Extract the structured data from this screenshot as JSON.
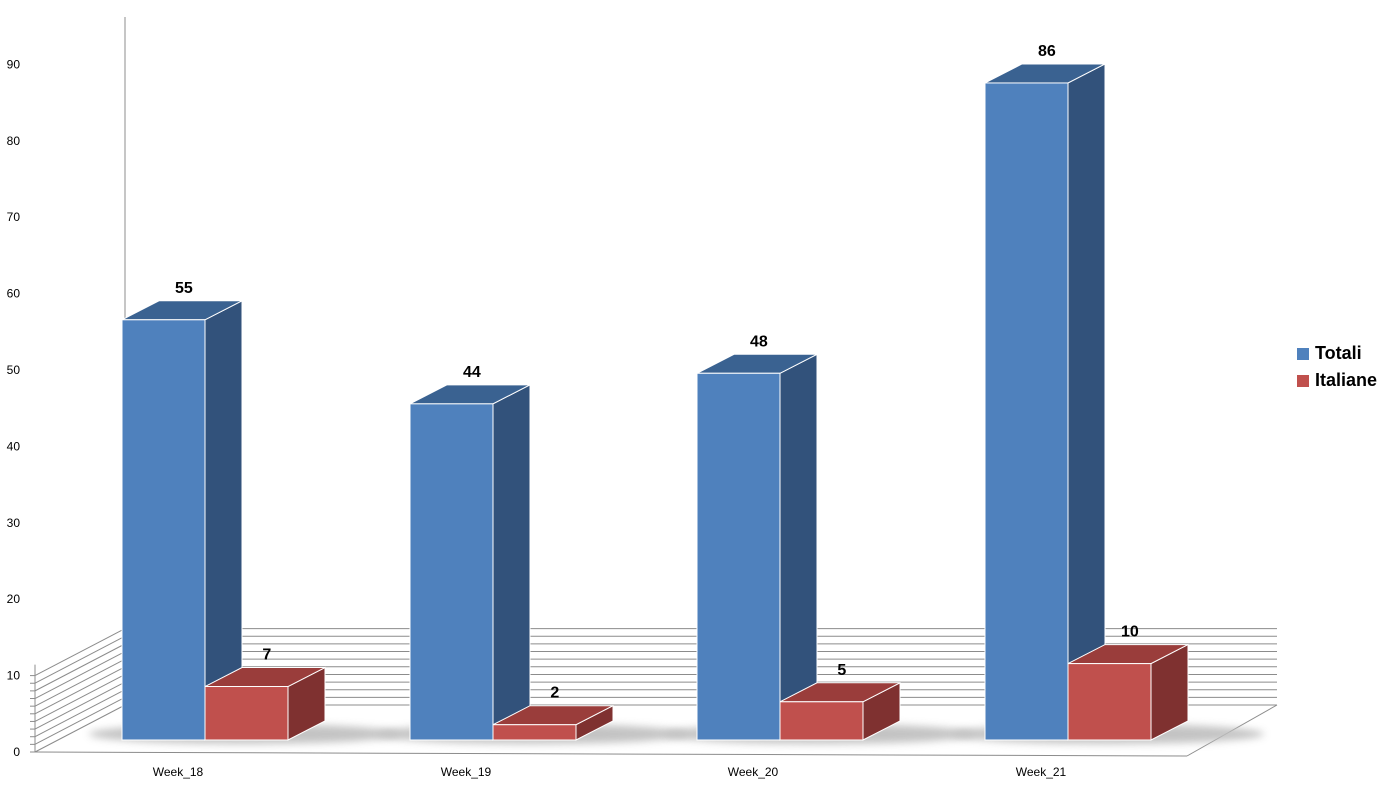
{
  "chart_data": {
    "type": "bar",
    "categories": [
      "Week_18",
      "Week_19",
      "Week_20",
      "Week_21"
    ],
    "series": [
      {
        "name": "Totali",
        "values": [
          55,
          44,
          48,
          86
        ],
        "color": "#4F81BD",
        "side_color": "#32527B",
        "top_color": "#3A6291"
      },
      {
        "name": "Italiane",
        "values": [
          7,
          2,
          5,
          10
        ],
        "color": "#C0504D",
        "side_color": "#7F3130",
        "top_color": "#9A3D3B"
      }
    ],
    "y_ticks": [
      "0",
      "10",
      "20",
      "30",
      "40",
      "50",
      "60",
      "70",
      "80",
      "90"
    ],
    "ylim": [
      0,
      95
    ],
    "grid": true,
    "legend_position": "right",
    "data_labels": true,
    "style": "3d-clustered-column"
  }
}
